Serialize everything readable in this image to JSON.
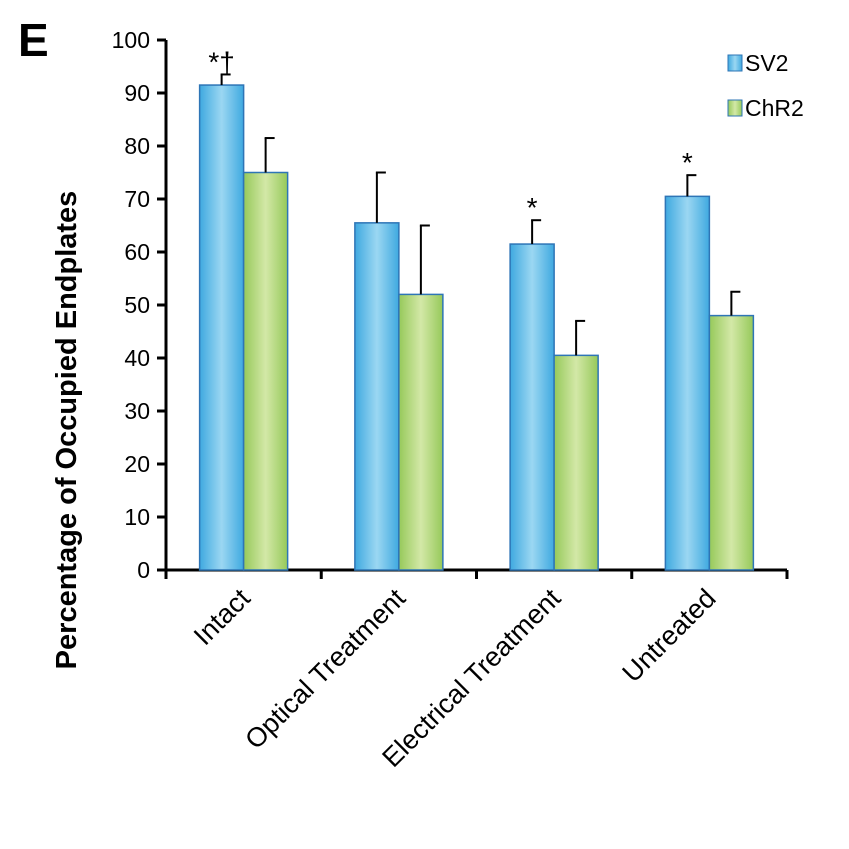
{
  "panel_label": "E",
  "chart_data": {
    "type": "bar",
    "title": "",
    "xlabel": "",
    "ylabel": "Percentage of Occupied Endplates",
    "ylim": [
      0,
      100
    ],
    "yticks": [
      0,
      10,
      20,
      30,
      40,
      50,
      60,
      70,
      80,
      90,
      100
    ],
    "grid": false,
    "legend_position": "top-right",
    "categories": [
      "Intact",
      "Optical Treatment",
      "Electrical Treatment",
      "Untreated"
    ],
    "series": [
      {
        "name": "SV2",
        "color": "#5ab7e8",
        "values": [
          91.5,
          65.5,
          61.5,
          70.5
        ],
        "errors": [
          2.0,
          9.5,
          4.5,
          4.0
        ]
      },
      {
        "name": "ChR2",
        "color": "#a9d46e",
        "values": [
          75,
          52,
          40.5,
          48
        ],
        "errors": [
          6.5,
          13,
          6.5,
          4.5
        ]
      }
    ],
    "annotations": [
      "*†",
      "",
      "*",
      "*"
    ]
  }
}
